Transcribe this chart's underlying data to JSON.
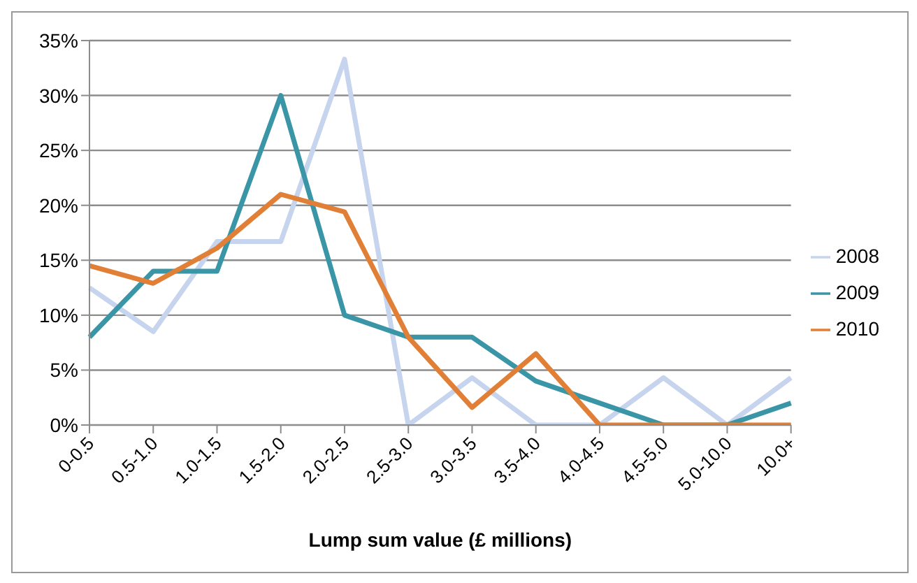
{
  "chart_data": {
    "type": "line",
    "xlabel": "Lump sum value (£ millions)",
    "categories": [
      "0-0.5",
      "0.5-1.0",
      "1.0-1.5",
      "1.5-2.0",
      "2.0-2.5",
      "2.5-3.0",
      "3.0-3.5",
      "3.5-4.0",
      "4.0-4.5",
      "4.5-5.0",
      "5.0-10.0",
      "10.0+"
    ],
    "series": [
      {
        "name": "2008",
        "color": "#c6d4ee",
        "values": [
          12.5,
          8.5,
          16.7,
          16.7,
          33.3,
          0,
          4.3,
          0,
          0,
          4.3,
          0,
          4.3
        ]
      },
      {
        "name": "2009",
        "color": "#3a95a7",
        "values": [
          8,
          14,
          14,
          30,
          10,
          8,
          8,
          4,
          2,
          0,
          0,
          2
        ]
      },
      {
        "name": "2010",
        "color": "#e07f35",
        "values": [
          14.5,
          12.9,
          16.1,
          21,
          19.4,
          8,
          1.6,
          6.5,
          0,
          0,
          0,
          0
        ]
      }
    ],
    "ylim": [
      0,
      35
    ],
    "yticks": [
      {
        "value": 0,
        "label": "0%"
      },
      {
        "value": 5,
        "label": "5%"
      },
      {
        "value": 10,
        "label": "10%"
      },
      {
        "value": 15,
        "label": "15%"
      },
      {
        "value": 20,
        "label": "20%"
      },
      {
        "value": 25,
        "label": "25%"
      },
      {
        "value": 30,
        "label": "30%"
      },
      {
        "value": 35,
        "label": "35%"
      }
    ],
    "grid": "y",
    "legend": "right",
    "marker": "none",
    "line_style": "solid"
  }
}
